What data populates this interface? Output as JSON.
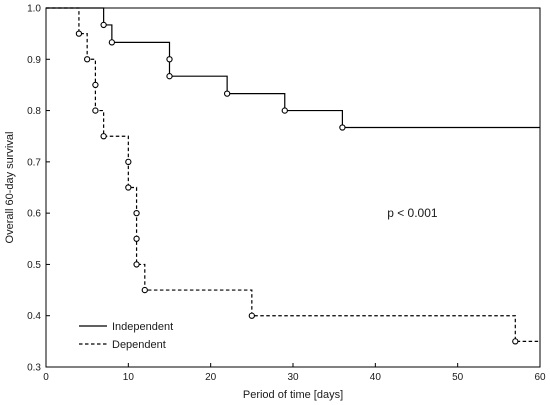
{
  "chart_data": {
    "type": "line",
    "xlabel": "Period of time [days]",
    "ylabel": "Overall 60-day survival",
    "xlim": [
      0,
      60
    ],
    "ylim": [
      0.3,
      1.0
    ],
    "x_ticks": [
      0,
      10,
      20,
      30,
      40,
      50,
      60
    ],
    "y_ticks": [
      0.3,
      0.4,
      0.5,
      0.6,
      0.7,
      0.8,
      0.9,
      1.0
    ],
    "x_tick_labels": [
      "0",
      "10",
      "20",
      "30",
      "40",
      "50",
      "60"
    ],
    "y_tick_labels": [
      "0.3",
      "0.4",
      "0.5",
      "0.6",
      "0.7",
      "0.8",
      "0.9",
      "1.0"
    ],
    "grid": false,
    "legend_position": "bottom-left",
    "annotation": "p < 0.001",
    "series": [
      {
        "name": "Independent",
        "line_style": "solid",
        "color": "#000000",
        "step_points": [
          [
            0,
            1.0
          ],
          [
            7,
            0.967
          ],
          [
            8,
            0.933
          ],
          [
            15,
            0.9
          ],
          [
            15,
            0.867
          ],
          [
            22,
            0.833
          ],
          [
            29,
            0.8
          ],
          [
            36,
            0.767
          ],
          [
            60,
            0.767
          ]
        ],
        "censor_points": [
          [
            7,
            0.967
          ],
          [
            8,
            0.933
          ],
          [
            15,
            0.9
          ],
          [
            15,
            0.867
          ],
          [
            22,
            0.833
          ],
          [
            29,
            0.8
          ],
          [
            36,
            0.767
          ]
        ]
      },
      {
        "name": "Dependent",
        "line_style": "dashed",
        "color": "#000000",
        "step_points": [
          [
            0,
            1.0
          ],
          [
            4,
            0.95
          ],
          [
            5,
            0.9
          ],
          [
            6,
            0.85
          ],
          [
            6,
            0.8
          ],
          [
            7,
            0.75
          ],
          [
            10,
            0.7
          ],
          [
            10,
            0.65
          ],
          [
            11,
            0.6
          ],
          [
            11,
            0.55
          ],
          [
            11,
            0.5
          ],
          [
            12,
            0.45
          ],
          [
            25,
            0.4
          ],
          [
            57,
            0.35
          ],
          [
            60,
            0.35
          ]
        ],
        "censor_points": [
          [
            4,
            0.95
          ],
          [
            5,
            0.9
          ],
          [
            6,
            0.85
          ],
          [
            6,
            0.8
          ],
          [
            7,
            0.75
          ],
          [
            10,
            0.7
          ],
          [
            10,
            0.65
          ],
          [
            11,
            0.6
          ],
          [
            11,
            0.55
          ],
          [
            11,
            0.5
          ],
          [
            12,
            0.45
          ],
          [
            25,
            0.4
          ],
          [
            57,
            0.35
          ]
        ]
      }
    ]
  }
}
